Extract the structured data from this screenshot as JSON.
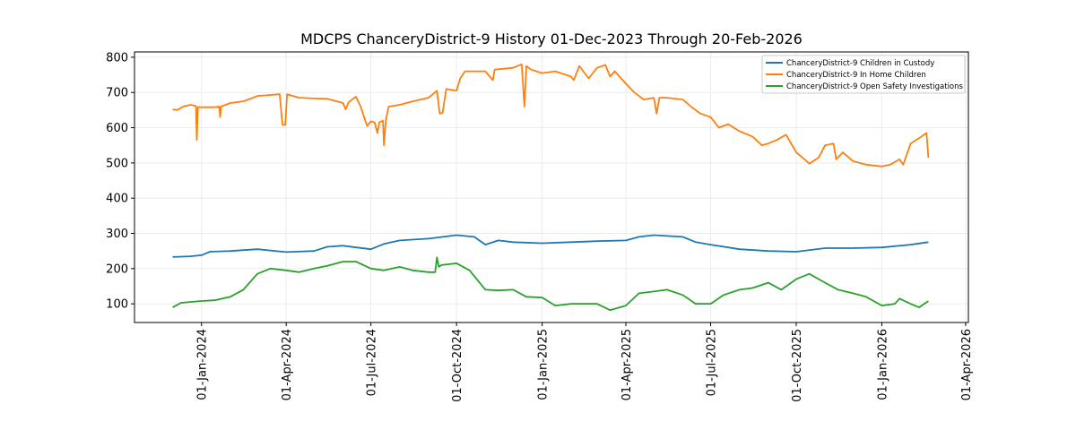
{
  "chart_data": {
    "type": "line",
    "title": "MDCPS ChanceryDistrict-9 History 01-Dec-2023 Through 20-Feb-2026",
    "xlabel": "",
    "ylabel": "",
    "xlim": [
      "2023-10-21",
      "2026-04-04"
    ],
    "ylim": [
      47,
      815
    ],
    "grid": true,
    "legend_position": "top-right",
    "yticks": [
      100,
      200,
      300,
      400,
      500,
      600,
      700,
      800
    ],
    "xticks": [
      {
        "date": "2024-01-01",
        "label": "01-Jan-2024"
      },
      {
        "date": "2024-04-01",
        "label": "01-Apr-2024"
      },
      {
        "date": "2024-07-01",
        "label": "01-Jul-2024"
      },
      {
        "date": "2024-10-01",
        "label": "01-Oct-2024"
      },
      {
        "date": "2025-01-01",
        "label": "01-Jan-2025"
      },
      {
        "date": "2025-04-01",
        "label": "01-Apr-2025"
      },
      {
        "date": "2025-07-01",
        "label": "01-Jul-2025"
      },
      {
        "date": "2025-10-01",
        "label": "01-Oct-2025"
      },
      {
        "date": "2026-01-01",
        "label": "01-Jan-2026"
      },
      {
        "date": "2026-04-01",
        "label": "01-Apr-2026"
      }
    ],
    "series": [
      {
        "name": "ChanceryDistrict-9 Children in Custody",
        "color": "#1f77b4",
        "points": [
          [
            "2023-12-01",
            233
          ],
          [
            "2023-12-20",
            235
          ],
          [
            "2024-01-01",
            238
          ],
          [
            "2024-01-10",
            248
          ],
          [
            "2024-02-01",
            250
          ],
          [
            "2024-03-01",
            255
          ],
          [
            "2024-04-01",
            247
          ],
          [
            "2024-05-01",
            250
          ],
          [
            "2024-05-15",
            262
          ],
          [
            "2024-06-01",
            265
          ],
          [
            "2024-07-01",
            255
          ],
          [
            "2024-07-15",
            270
          ],
          [
            "2024-08-01",
            280
          ],
          [
            "2024-09-01",
            285
          ],
          [
            "2024-10-01",
            295
          ],
          [
            "2024-10-20",
            290
          ],
          [
            "2024-11-01",
            268
          ],
          [
            "2024-11-15",
            280
          ],
          [
            "2024-12-01",
            275
          ],
          [
            "2025-01-01",
            272
          ],
          [
            "2025-02-01",
            275
          ],
          [
            "2025-03-01",
            278
          ],
          [
            "2025-04-01",
            280
          ],
          [
            "2025-04-15",
            290
          ],
          [
            "2025-05-01",
            295
          ],
          [
            "2025-06-01",
            290
          ],
          [
            "2025-06-15",
            275
          ],
          [
            "2025-07-01",
            268
          ],
          [
            "2025-08-01",
            255
          ],
          [
            "2025-09-01",
            250
          ],
          [
            "2025-10-01",
            248
          ],
          [
            "2025-11-01",
            258
          ],
          [
            "2025-12-01",
            258
          ],
          [
            "2026-01-01",
            260
          ],
          [
            "2026-02-01",
            268
          ],
          [
            "2026-02-20",
            275
          ]
        ]
      },
      {
        "name": "ChanceryDistrict-9 In Home Children",
        "color": "#ff7f0e",
        "points": [
          [
            "2023-12-01",
            652
          ],
          [
            "2023-12-06",
            650
          ],
          [
            "2023-12-12",
            660
          ],
          [
            "2023-12-20",
            665
          ],
          [
            "2023-12-26",
            662
          ],
          [
            "2023-12-27",
            565
          ],
          [
            "2023-12-28",
            658
          ],
          [
            "2024-01-15",
            658
          ],
          [
            "2024-01-20",
            660
          ],
          [
            "2024-01-21",
            630
          ],
          [
            "2024-01-22",
            660
          ],
          [
            "2024-02-01",
            670
          ],
          [
            "2024-02-15",
            675
          ],
          [
            "2024-03-01",
            690
          ],
          [
            "2024-03-15",
            693
          ],
          [
            "2024-03-25",
            695
          ],
          [
            "2024-03-28",
            608
          ],
          [
            "2024-03-31",
            608
          ],
          [
            "2024-04-02",
            695
          ],
          [
            "2024-04-15",
            685
          ],
          [
            "2024-05-01",
            683
          ],
          [
            "2024-05-15",
            682
          ],
          [
            "2024-06-01",
            670
          ],
          [
            "2024-06-04",
            652
          ],
          [
            "2024-06-07",
            672
          ],
          [
            "2024-06-15",
            688
          ],
          [
            "2024-06-20",
            660
          ],
          [
            "2024-06-25",
            620
          ],
          [
            "2024-06-27",
            605
          ],
          [
            "2024-07-01",
            618
          ],
          [
            "2024-07-05",
            615
          ],
          [
            "2024-07-08",
            585
          ],
          [
            "2024-07-10",
            615
          ],
          [
            "2024-07-14",
            620
          ],
          [
            "2024-07-15",
            550
          ],
          [
            "2024-07-17",
            620
          ],
          [
            "2024-07-20",
            660
          ],
          [
            "2024-08-01",
            665
          ],
          [
            "2024-08-15",
            675
          ],
          [
            "2024-09-01",
            685
          ],
          [
            "2024-09-10",
            705
          ],
          [
            "2024-09-13",
            640
          ],
          [
            "2024-09-16",
            642
          ],
          [
            "2024-09-20",
            710
          ],
          [
            "2024-10-01",
            705
          ],
          [
            "2024-10-05",
            740
          ],
          [
            "2024-10-10",
            760
          ],
          [
            "2024-11-01",
            760
          ],
          [
            "2024-11-09",
            735
          ],
          [
            "2024-11-11",
            765
          ],
          [
            "2024-12-01",
            770
          ],
          [
            "2024-12-10",
            780
          ],
          [
            "2024-12-13",
            660
          ],
          [
            "2024-12-15",
            775
          ],
          [
            "2024-12-20",
            765
          ],
          [
            "2025-01-01",
            755
          ],
          [
            "2025-01-15",
            760
          ],
          [
            "2025-02-01",
            745
          ],
          [
            "2025-02-04",
            735
          ],
          [
            "2025-02-10",
            775
          ],
          [
            "2025-02-20",
            740
          ],
          [
            "2025-03-01",
            770
          ],
          [
            "2025-03-10",
            778
          ],
          [
            "2025-03-15",
            745
          ],
          [
            "2025-03-20",
            760
          ],
          [
            "2025-04-01",
            725
          ],
          [
            "2025-04-10",
            700
          ],
          [
            "2025-04-20",
            680
          ],
          [
            "2025-05-01",
            685
          ],
          [
            "2025-05-04",
            640
          ],
          [
            "2025-05-07",
            685
          ],
          [
            "2025-05-15",
            685
          ],
          [
            "2025-06-01",
            680
          ],
          [
            "2025-06-10",
            660
          ],
          [
            "2025-06-20",
            640
          ],
          [
            "2025-07-01",
            630
          ],
          [
            "2025-07-10",
            600
          ],
          [
            "2025-07-20",
            610
          ],
          [
            "2025-08-01",
            590
          ],
          [
            "2025-08-15",
            575
          ],
          [
            "2025-08-25",
            550
          ],
          [
            "2025-09-01",
            555
          ],
          [
            "2025-09-10",
            565
          ],
          [
            "2025-09-20",
            580
          ],
          [
            "2025-10-01",
            530
          ],
          [
            "2025-10-10",
            510
          ],
          [
            "2025-10-15",
            498
          ],
          [
            "2025-10-25",
            515
          ],
          [
            "2025-11-01",
            550
          ],
          [
            "2025-11-10",
            555
          ],
          [
            "2025-11-13",
            510
          ],
          [
            "2025-11-20",
            530
          ],
          [
            "2025-12-01",
            505
          ],
          [
            "2025-12-15",
            495
          ],
          [
            "2026-01-01",
            490
          ],
          [
            "2026-01-10",
            495
          ],
          [
            "2026-01-20",
            510
          ],
          [
            "2026-01-24",
            495
          ],
          [
            "2026-02-01",
            555
          ],
          [
            "2026-02-10",
            570
          ],
          [
            "2026-02-18",
            585
          ],
          [
            "2026-02-20",
            515
          ]
        ]
      },
      {
        "name": "ChanceryDistrict-9 Open Safety Investigations",
        "color": "#2ca02c",
        "points": [
          [
            "2023-12-01",
            90
          ],
          [
            "2023-12-10",
            103
          ],
          [
            "2024-01-01",
            108
          ],
          [
            "2024-01-15",
            110
          ],
          [
            "2024-02-01",
            120
          ],
          [
            "2024-02-15",
            140
          ],
          [
            "2024-03-01",
            185
          ],
          [
            "2024-03-15",
            200
          ],
          [
            "2024-04-01",
            195
          ],
          [
            "2024-04-15",
            190
          ],
          [
            "2024-05-01",
            200
          ],
          [
            "2024-05-15",
            208
          ],
          [
            "2024-06-01",
            220
          ],
          [
            "2024-06-15",
            220
          ],
          [
            "2024-07-01",
            200
          ],
          [
            "2024-07-15",
            195
          ],
          [
            "2024-08-01",
            205
          ],
          [
            "2024-08-15",
            195
          ],
          [
            "2024-09-01",
            190
          ],
          [
            "2024-09-08",
            190
          ],
          [
            "2024-09-10",
            232
          ],
          [
            "2024-09-12",
            205
          ],
          [
            "2024-09-15",
            210
          ],
          [
            "2024-10-01",
            215
          ],
          [
            "2024-10-15",
            195
          ],
          [
            "2024-11-01",
            140
          ],
          [
            "2024-11-15",
            138
          ],
          [
            "2024-12-01",
            140
          ],
          [
            "2024-12-15",
            120
          ],
          [
            "2025-01-01",
            118
          ],
          [
            "2025-01-15",
            95
          ],
          [
            "2025-02-01",
            100
          ],
          [
            "2025-02-15",
            100
          ],
          [
            "2025-03-01",
            100
          ],
          [
            "2025-03-15",
            82
          ],
          [
            "2025-04-01",
            95
          ],
          [
            "2025-04-15",
            130
          ],
          [
            "2025-05-01",
            135
          ],
          [
            "2025-05-15",
            140
          ],
          [
            "2025-06-01",
            125
          ],
          [
            "2025-06-15",
            100
          ],
          [
            "2025-07-01",
            100
          ],
          [
            "2025-07-15",
            125
          ],
          [
            "2025-08-01",
            140
          ],
          [
            "2025-08-15",
            145
          ],
          [
            "2025-09-01",
            160
          ],
          [
            "2025-09-15",
            140
          ],
          [
            "2025-10-01",
            170
          ],
          [
            "2025-10-15",
            185
          ],
          [
            "2025-11-01",
            160
          ],
          [
            "2025-11-15",
            140
          ],
          [
            "2025-12-01",
            130
          ],
          [
            "2025-12-15",
            120
          ],
          [
            "2026-01-01",
            95
          ],
          [
            "2026-01-15",
            100
          ],
          [
            "2026-01-20",
            115
          ],
          [
            "2026-02-01",
            100
          ],
          [
            "2026-02-10",
            90
          ],
          [
            "2026-02-20",
            108
          ]
        ]
      }
    ]
  }
}
